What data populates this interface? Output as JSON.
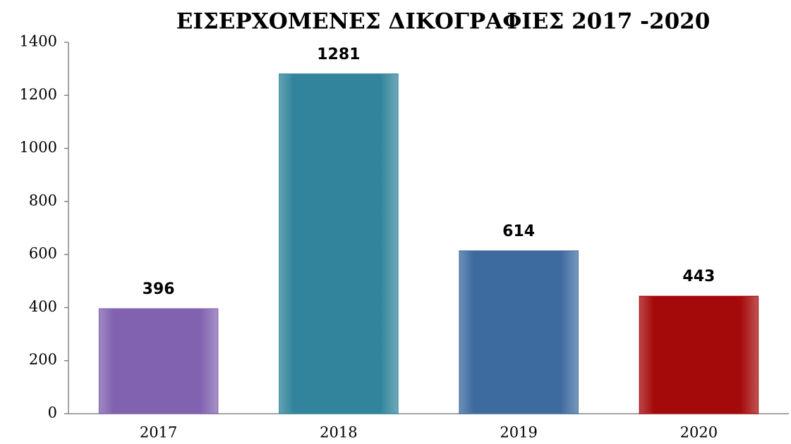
{
  "chart_data": {
    "type": "bar",
    "title": "ΕΙΣΕΡΧΟΜΕΝΕΣ ΔΙΚΟΓΡΑΦΙΕΣ 2017 -2020",
    "categories": [
      "2017",
      "2018",
      "2019",
      "2020"
    ],
    "values": [
      396,
      1281,
      614,
      443
    ],
    "colors": [
      "#8062b0",
      "#31849b",
      "#3d6a9f",
      "#a50a0a"
    ],
    "ylim": [
      0,
      1400
    ],
    "yticks": [
      0,
      200,
      400,
      600,
      800,
      1000,
      1200,
      1400
    ],
    "grid": false
  }
}
